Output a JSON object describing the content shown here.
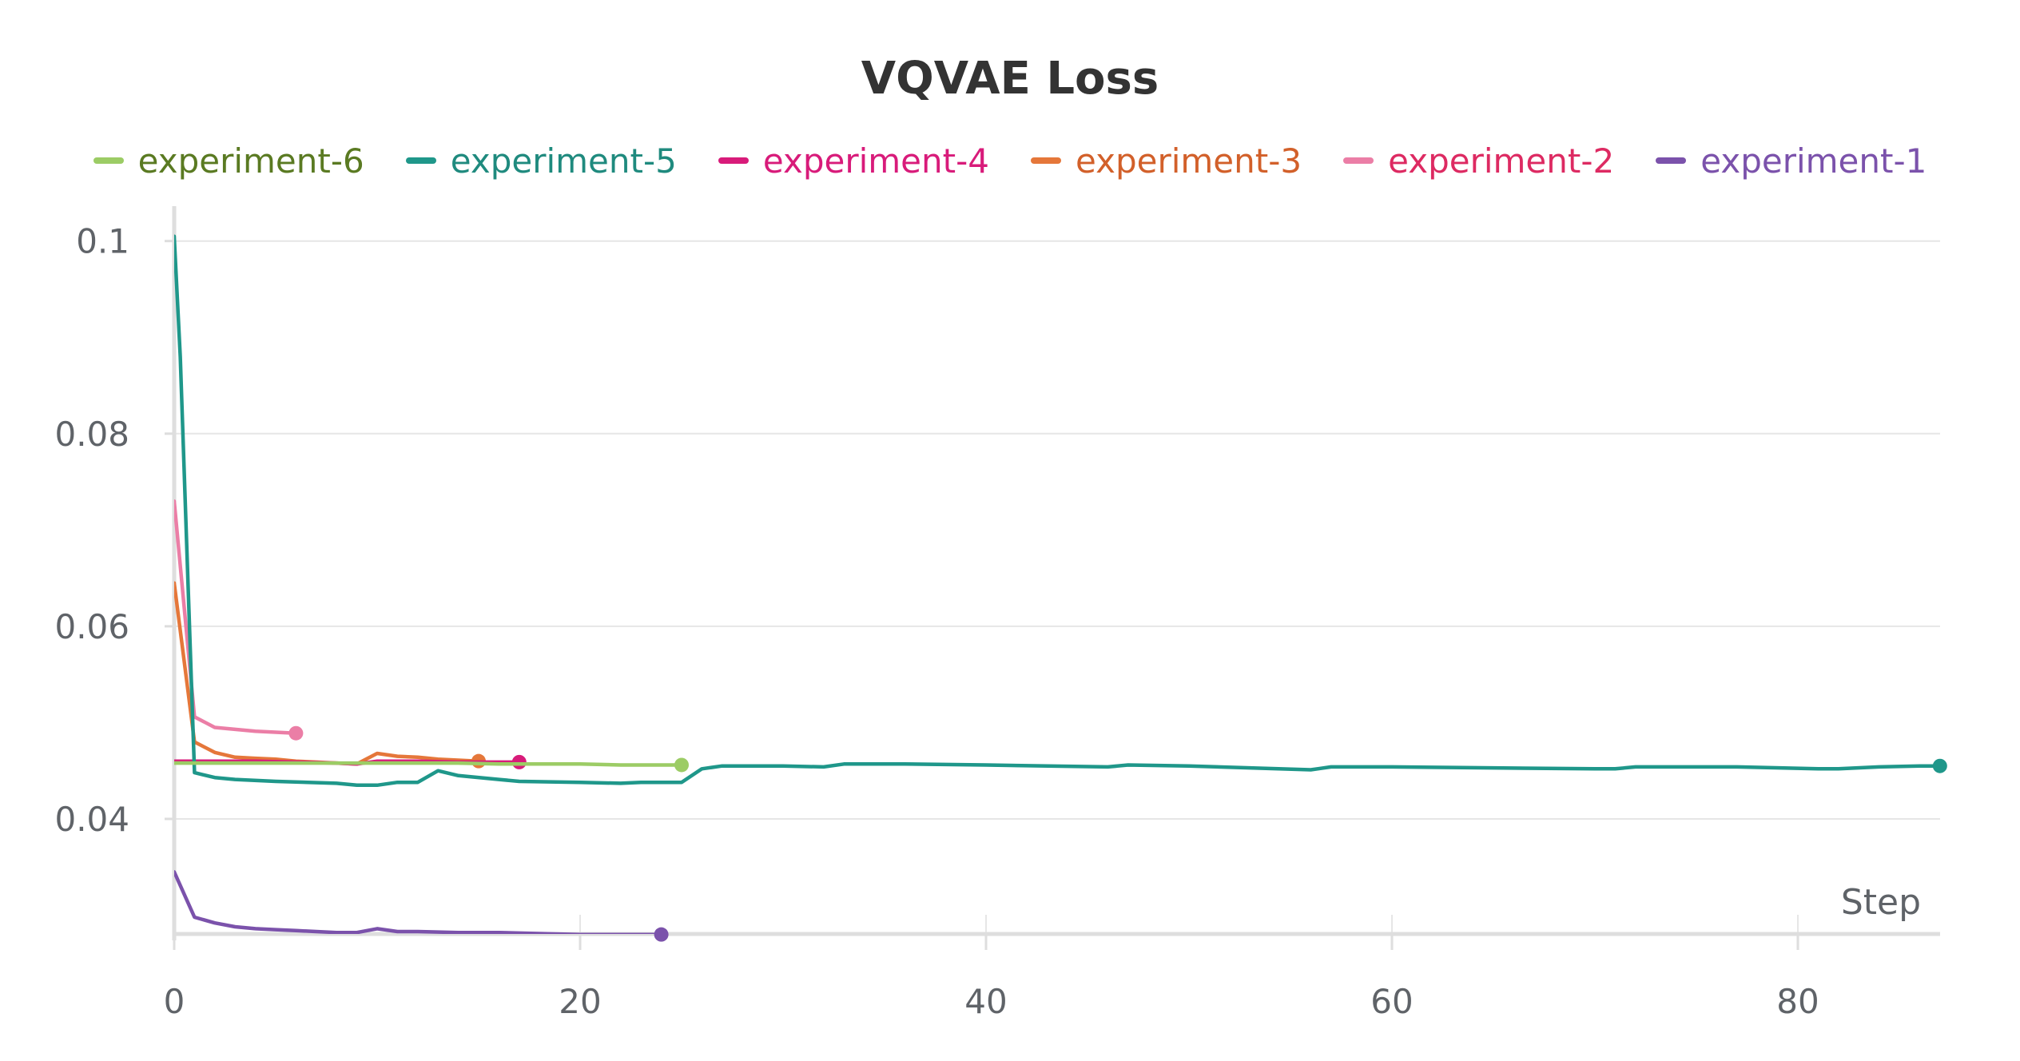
{
  "chart_data": {
    "type": "line",
    "title": "VQVAE Loss",
    "xlabel": "Step",
    "ylabel": "",
    "xlim": [
      0,
      87
    ],
    "ylim": [
      0.028,
      0.102
    ],
    "xticks": [
      0,
      20,
      40,
      60,
      80
    ],
    "xtick_labels": [
      "0",
      "20",
      "40",
      "60",
      "80"
    ],
    "yticks": [
      0.04,
      0.06,
      0.08,
      0.1
    ],
    "ytick_labels": [
      "0.04",
      "0.06",
      "0.08",
      "0.1"
    ],
    "grid": true,
    "legend_position": "top",
    "series": [
      {
        "name": "experiment-6",
        "color": "#9ccc65",
        "text_color": "#5a7a22",
        "x": [
          0,
          1,
          2,
          4,
          6,
          8,
          10,
          12,
          14,
          16,
          18,
          20,
          22,
          24,
          25
        ],
        "y": [
          0.0458,
          0.0458,
          0.0458,
          0.0458,
          0.0458,
          0.0458,
          0.0458,
          0.0458,
          0.0458,
          0.0457,
          0.0457,
          0.0457,
          0.0456,
          0.0456,
          0.0456
        ]
      },
      {
        "name": "experiment-5",
        "color": "#1f978a",
        "text_color": "#1f8a7e",
        "x": [
          0,
          0.3,
          1,
          2,
          3,
          5,
          8,
          9,
          10,
          11,
          12,
          13,
          14,
          16,
          17,
          20,
          22,
          23,
          25,
          26,
          27,
          30,
          32,
          33,
          36,
          40,
          46,
          47,
          50,
          56,
          57,
          60,
          70,
          71,
          72,
          75,
          77,
          81,
          82,
          84,
          86,
          87
        ],
        "y": [
          0.1005,
          0.088,
          0.0448,
          0.0443,
          0.0441,
          0.0439,
          0.0437,
          0.0435,
          0.0435,
          0.0438,
          0.0438,
          0.045,
          0.0445,
          0.0441,
          0.0439,
          0.0438,
          0.0437,
          0.0438,
          0.0438,
          0.0452,
          0.0455,
          0.0455,
          0.0454,
          0.0457,
          0.0457,
          0.0456,
          0.0454,
          0.0456,
          0.0455,
          0.0451,
          0.0454,
          0.0454,
          0.0452,
          0.0452,
          0.0454,
          0.0454,
          0.0454,
          0.0452,
          0.0452,
          0.0454,
          0.0455,
          0.0455
        ]
      },
      {
        "name": "experiment-4",
        "color": "#d81b7a",
        "text_color": "#d81b7a",
        "x": [
          0,
          1,
          2,
          4,
          6,
          8,
          9,
          10,
          11,
          12,
          14,
          15,
          16,
          17
        ],
        "y": [
          0.046,
          0.046,
          0.046,
          0.046,
          0.0459,
          0.0458,
          0.0457,
          0.046,
          0.046,
          0.046,
          0.0459,
          0.0459,
          0.0459,
          0.0459
        ]
      },
      {
        "name": "experiment-3",
        "color": "#e5773a",
        "text_color": "#d2602a",
        "x": [
          0,
          1,
          2,
          3,
          4,
          5,
          6,
          7,
          8,
          9,
          10,
          11,
          12,
          13,
          14,
          15
        ],
        "y": [
          0.0645,
          0.048,
          0.0469,
          0.0464,
          0.0463,
          0.0462,
          0.046,
          0.0459,
          0.0458,
          0.0457,
          0.0468,
          0.0465,
          0.0464,
          0.0462,
          0.0461,
          0.046
        ]
      },
      {
        "name": "experiment-2",
        "color": "#eb7ea6",
        "text_color": "#dd2a62",
        "x": [
          0,
          1,
          2,
          3,
          4,
          5,
          6
        ],
        "y": [
          0.073,
          0.0506,
          0.0495,
          0.0493,
          0.0491,
          0.049,
          0.0489
        ]
      },
      {
        "name": "experiment-1",
        "color": "#7b52ab",
        "text_color": "#7b52ab",
        "x": [
          0,
          1,
          2,
          3,
          4,
          5,
          6,
          7,
          8,
          9,
          10,
          11,
          12,
          14,
          16,
          18,
          20,
          22,
          24
        ],
        "y": [
          0.0345,
          0.0298,
          0.0292,
          0.0288,
          0.0286,
          0.0285,
          0.0284,
          0.0283,
          0.0282,
          0.0282,
          0.0286,
          0.0283,
          0.0283,
          0.0282,
          0.0282,
          0.0281,
          0.028,
          0.028,
          0.028
        ]
      }
    ]
  }
}
